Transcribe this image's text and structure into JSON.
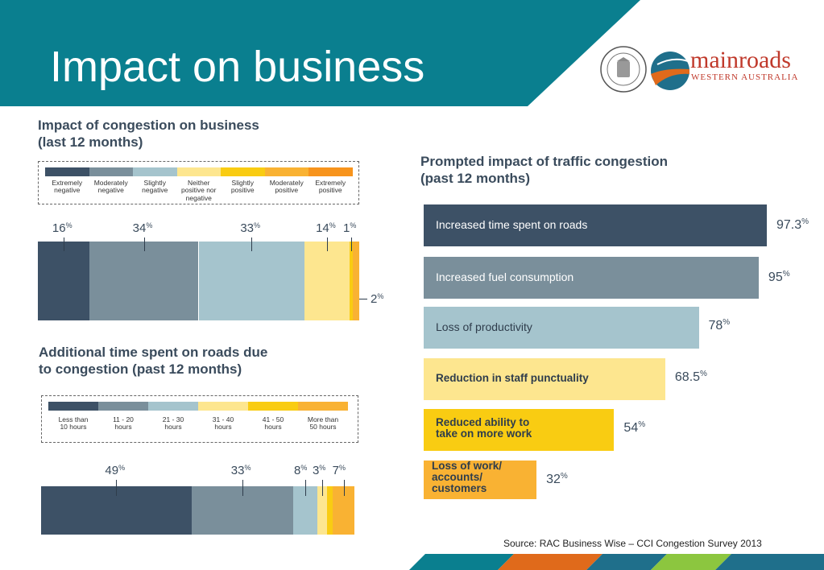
{
  "slide_title": "Impact on business",
  "logo": {
    "main": "mainroads",
    "sub": "WESTERN AUSTRALIA",
    "seal_text": "THE GOVERNMENT OF WESTERN AUSTRALIA"
  },
  "source": "Source: RAC Business Wise – CCI  Congestion Survey 2013",
  "colors": {
    "teal": "#0a7f8f",
    "dark_navy": "#3d5166",
    "slate": "#7a8f9b",
    "light_blue": "#a5c4cd",
    "pale_yellow": "#fde68f",
    "yellow": "#f9cc12",
    "amber": "#f9b233",
    "orange": "#f7941d"
  },
  "chart_data": [
    {
      "type": "bar",
      "title": "Impact of congestion on business\n(last 12 months)",
      "categories": [
        "Extremely negative",
        "Moderately negative",
        "Slightly negative",
        "Neither positive nor negative",
        "Slightly positive",
        "Moderately positive",
        "Extremely positive"
      ],
      "legend_labels": [
        "Extremely\nnegative",
        "Moderately\nnegative",
        "Slightly\nnegative",
        "Neither\npositive nor\nnegative",
        "Slightly\npositive",
        "Moderately\npositive",
        "Extremely\npositive"
      ],
      "values": [
        16,
        34,
        33,
        14,
        1,
        2,
        0
      ],
      "value_labels": [
        "16",
        "34",
        "33",
        "14",
        "1",
        "2",
        ""
      ],
      "unit": "%",
      "colors": [
        "#3d5166",
        "#7a8f9b",
        "#a5c4cd",
        "#fde68f",
        "#f9cc12",
        "#f9b233",
        "#f7941d"
      ],
      "stacked": true,
      "legend": "top"
    },
    {
      "type": "bar",
      "title": "Additional time spent on roads due\nto congestion (past 12 months)",
      "categories": [
        "Less than 10 hours",
        "11 - 20 hours",
        "21 - 30 hours",
        "31 - 40 hours",
        "41 - 50 hours",
        "More than 50 hours"
      ],
      "legend_labels": [
        "Less than\n10 hours",
        "11 - 20\nhours",
        "21 - 30\nhours",
        "31 - 40\nhours",
        "41 - 50\nhours",
        "More than\n50 hours"
      ],
      "values": [
        49,
        33,
        8,
        3,
        2,
        7
      ],
      "value_labels": [
        "49",
        "33",
        "8",
        "3",
        "",
        "7"
      ],
      "unit": "%",
      "colors": [
        "#3d5166",
        "#7a8f9b",
        "#a5c4cd",
        "#fde68f",
        "#f9cc12",
        "#f9b233"
      ],
      "stacked": true,
      "legend": "top"
    },
    {
      "type": "bar",
      "orientation": "horizontal",
      "title": "Prompted impact of traffic congestion\n(past 12 months)",
      "categories": [
        "Increased time spent on roads",
        "Increased fuel consumption",
        "Loss of productivity",
        "Reduction in staff punctuality",
        "Reduced ability to\ntake on more work",
        "Loss of work/\naccounts/\ncustomers"
      ],
      "values": [
        97.3,
        95,
        78,
        68.5,
        54,
        32
      ],
      "value_labels": [
        "97.3",
        "95",
        "78",
        "68.5",
        "54",
        "32"
      ],
      "unit": "%",
      "colors": [
        "#3d5166",
        "#7a8f9b",
        "#a5c4cd",
        "#fde68f",
        "#f9cc12",
        "#f9b233"
      ],
      "xlim": [
        0,
        100
      ]
    }
  ]
}
